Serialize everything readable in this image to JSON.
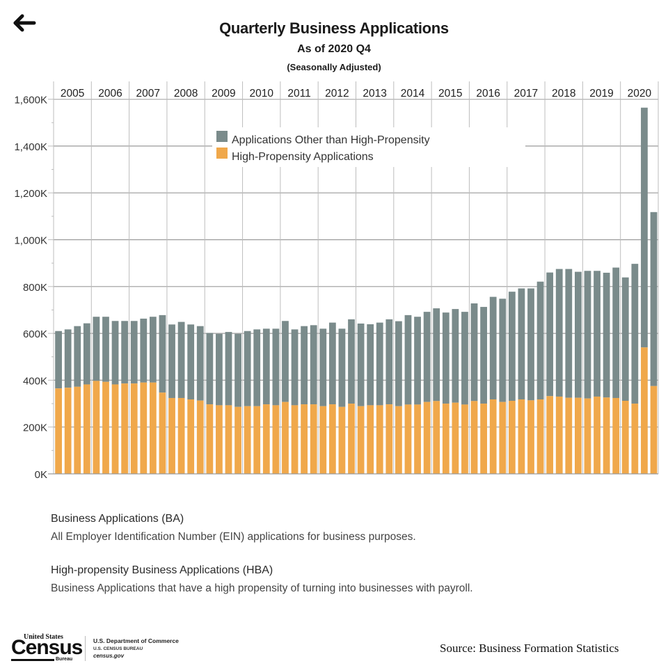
{
  "nav": {
    "back_icon": "arrow-left-icon"
  },
  "header": {
    "title": "Quarterly Business Applications",
    "subtitle": "As of 2020 Q4",
    "note": "(Seasonally Adjusted)"
  },
  "colors": {
    "other": "#7a8b8b",
    "hba": "#f0a84b",
    "grid": "#bdbdbd",
    "grid_major": "#9a9a9a"
  },
  "chart_data": {
    "type": "bar",
    "stacked": true,
    "title": "Quarterly Business Applications",
    "subtitle": "As of 2020 Q4 (Seasonally Adjusted)",
    "xlabel": "",
    "ylabel": "",
    "ylim": [
      0,
      1600
    ],
    "yunit": "K",
    "yticks": [
      "0K",
      "200K",
      "400K",
      "600K",
      "800K",
      "1,000K",
      "1,200K",
      "1,400K",
      "1,600K"
    ],
    "ytick_values": [
      0,
      200,
      400,
      600,
      800,
      1000,
      1200,
      1400,
      1600
    ],
    "years": [
      "2005",
      "2006",
      "2007",
      "2008",
      "2009",
      "2010",
      "2011",
      "2012",
      "2013",
      "2014",
      "2015",
      "2016",
      "2017",
      "2018",
      "2019",
      "2020"
    ],
    "quarters_per_year": 4,
    "grid": true,
    "legend_position": "top-center",
    "legend": [
      "Applications Other than High-Propensity",
      "High-Propensity Applications"
    ],
    "series": [
      {
        "name": "Business Applications (total)",
        "values": [
          610,
          617,
          631,
          643,
          671,
          671,
          653,
          653,
          653,
          663,
          671,
          678,
          638,
          649,
          638,
          631,
          602,
          598,
          606,
          598,
          610,
          617,
          620,
          620,
          653,
          617,
          631,
          635,
          620,
          646,
          620,
          660,
          642,
          639,
          646,
          660,
          652,
          678,
          671,
          692,
          707,
          689,
          704,
          692,
          728,
          713,
          756,
          748,
          778,
          792,
          792,
          821,
          860,
          875,
          875,
          863,
          867,
          867,
          859,
          881,
          839,
          897,
          1564,
          1118
        ]
      },
      {
        "name": "High-Propensity Applications",
        "values": [
          365,
          368,
          372,
          382,
          397,
          393,
          382,
          386,
          386,
          390,
          390,
          347,
          324,
          324,
          318,
          313,
          297,
          293,
          293,
          286,
          289,
          289,
          297,
          293,
          307,
          293,
          297,
          297,
          289,
          297,
          286,
          300,
          289,
          293,
          293,
          297,
          289,
          296,
          296,
          307,
          311,
          300,
          304,
          296,
          311,
          300,
          318,
          307,
          312,
          318,
          314,
          318,
          332,
          330,
          325,
          325,
          322,
          330,
          326,
          324,
          312,
          300,
          540,
          375
        ]
      }
    ]
  },
  "notes": [
    {
      "heading": "Business Applications (BA)",
      "body": "All Employer Identification Number (EIN) applications for business purposes."
    },
    {
      "heading": "High-propensity Business Applications (HBA)",
      "body": "Business Applications that have a high propensity of turning into businesses with payroll."
    }
  ],
  "footer": {
    "logo": {
      "line1": "United States",
      "line2": "Census",
      "line3": "Bureau"
    },
    "dept": "U.S. Department of Commerce",
    "bureau": "U.S. CENSUS BUREAU",
    "site": "census.gov",
    "source": "Source: Business Formation Statistics"
  }
}
